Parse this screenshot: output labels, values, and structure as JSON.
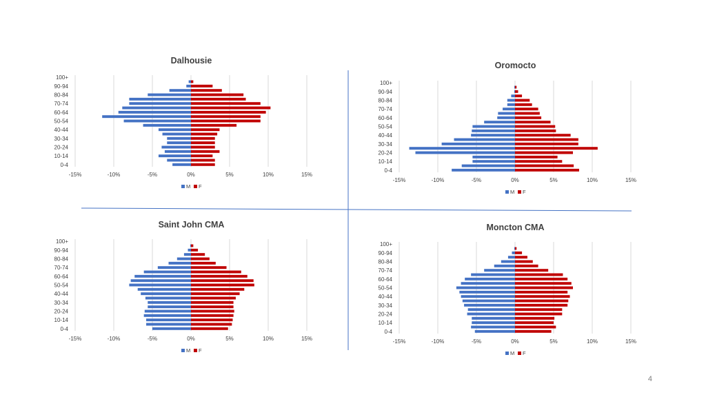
{
  "page": {
    "number": "4"
  },
  "colors": {
    "male": "#4472C4",
    "female": "#C00000",
    "grid": "#D9D9D9",
    "divider": "#4472C4",
    "text": "#404040"
  },
  "chart_data": [
    {
      "type": "bar",
      "orientation": "horizontal",
      "title": "Dalhousie",
      "categories": [
        "0-4",
        "5-9",
        "10-14",
        "15-19",
        "20-24",
        "25-29",
        "30-34",
        "35-39",
        "40-44",
        "45-49",
        "50-54",
        "55-59",
        "60-64",
        "65-69",
        "70-74",
        "75-79",
        "80-84",
        "85-89",
        "90-94",
        "95-99",
        "100+"
      ],
      "category_ticks": [
        "0-4",
        "10-14",
        "20-24",
        "30-34",
        "40-44",
        "50-54",
        "60-64",
        "70-74",
        "80-84",
        "90-94",
        "100+"
      ],
      "series": [
        {
          "name": "M",
          "values": [
            -2.4,
            -3.1,
            -4.2,
            -3.4,
            -3.8,
            -3.1,
            -3.1,
            -3.7,
            -4.2,
            -6.2,
            -8.7,
            -11.5,
            -9.4,
            -8.9,
            -8.0,
            -8.0,
            -5.6,
            -2.8,
            -0.6,
            -0.3,
            0
          ]
        },
        {
          "name": "F",
          "values": [
            3.1,
            3.1,
            2.8,
            3.7,
            3.1,
            3.1,
            3.1,
            3.4,
            3.7,
            5.9,
            9.0,
            9.0,
            9.7,
            10.3,
            9.0,
            7.1,
            6.8,
            4.0,
            2.8,
            0.3,
            0
          ]
        }
      ],
      "xlim": [
        -15,
        15
      ],
      "x_ticks": [
        "-15%",
        "-10%",
        "-5%",
        "0%",
        "5%",
        "10%",
        "15%"
      ],
      "legend": {
        "position": "bottom",
        "labels": [
          "M",
          "F"
        ]
      },
      "grid": true
    },
    {
      "type": "bar",
      "orientation": "horizontal",
      "title": "Oromocto",
      "categories": [
        "0-4",
        "5-9",
        "10-14",
        "15-19",
        "20-24",
        "25-29",
        "30-34",
        "35-39",
        "40-44",
        "45-49",
        "50-54",
        "55-59",
        "60-64",
        "65-69",
        "70-74",
        "75-79",
        "80-84",
        "85-89",
        "90-94",
        "95-99",
        "100+"
      ],
      "category_ticks": [
        "0-4",
        "10-14",
        "20-24",
        "30-34",
        "40-44",
        "50-54",
        "60-64",
        "70-74",
        "80-84",
        "90-94",
        "100+"
      ],
      "series": [
        {
          "name": "M",
          "values": [
            -8.2,
            -6.9,
            -5.5,
            -5.5,
            -12.9,
            -13.7,
            -9.5,
            -7.9,
            -5.7,
            -5.6,
            -5.5,
            -4.0,
            -2.3,
            -2.2,
            -1.6,
            -1.0,
            -1.0,
            -0.5,
            -0.1,
            -0.1,
            0
          ]
        },
        {
          "name": "F",
          "values": [
            8.3,
            7.6,
            6.1,
            5.5,
            7.5,
            10.7,
            8.2,
            8.2,
            7.2,
            5.3,
            5.2,
            4.6,
            3.4,
            3.2,
            3.0,
            2.2,
            1.9,
            0.9,
            0.4,
            0.2,
            0
          ]
        }
      ],
      "xlim": [
        -15,
        15
      ],
      "x_ticks": [
        "-15%",
        "-10%",
        "-5%",
        "0%",
        "5%",
        "10%",
        "15%"
      ],
      "legend": {
        "position": "bottom",
        "labels": [
          "M",
          "F"
        ]
      },
      "grid": true
    },
    {
      "type": "bar",
      "orientation": "horizontal",
      "title": "Saint John CMA",
      "categories": [
        "0-4",
        "5-9",
        "10-14",
        "15-19",
        "20-24",
        "25-29",
        "30-34",
        "35-39",
        "40-44",
        "45-49",
        "50-54",
        "55-59",
        "60-64",
        "65-69",
        "70-74",
        "75-79",
        "80-84",
        "85-89",
        "90-94",
        "95-99",
        "100+"
      ],
      "category_ticks": [
        "0-4",
        "10-14",
        "20-24",
        "30-34",
        "40-44",
        "50-54",
        "60-64",
        "70-74",
        "80-84",
        "90-94",
        "100+"
      ],
      "series": [
        {
          "name": "M",
          "values": [
            -5.0,
            -5.8,
            -5.8,
            -6.1,
            -6.0,
            -5.6,
            -5.6,
            -5.9,
            -6.5,
            -6.9,
            -8.0,
            -7.8,
            -7.3,
            -6.1,
            -4.3,
            -2.9,
            -1.8,
            -0.9,
            -0.4,
            -0.1,
            0
          ]
        },
        {
          "name": "F",
          "values": [
            4.8,
            5.3,
            5.4,
            5.5,
            5.6,
            5.5,
            5.5,
            5.8,
            6.3,
            6.9,
            8.2,
            8.1,
            7.3,
            6.5,
            4.6,
            3.2,
            2.4,
            1.8,
            0.9,
            0.3,
            0
          ]
        }
      ],
      "xlim": [
        -15,
        15
      ],
      "x_ticks": [
        "-15%",
        "-10%",
        "-5%",
        "0%",
        "5%",
        "10%",
        "15%"
      ],
      "legend": {
        "position": "bottom",
        "labels": [
          "M",
          "F"
        ]
      },
      "grid": true
    },
    {
      "type": "bar",
      "orientation": "horizontal",
      "title": "Moncton CMA",
      "categories": [
        "0-4",
        "5-9",
        "10-14",
        "15-19",
        "20-24",
        "25-29",
        "30-34",
        "35-39",
        "40-44",
        "45-49",
        "50-54",
        "55-59",
        "60-64",
        "65-69",
        "70-74",
        "75-79",
        "80-84",
        "85-89",
        "90-94",
        "95-99",
        "100+"
      ],
      "category_ticks": [
        "0-4",
        "10-14",
        "20-24",
        "30-34",
        "40-44",
        "50-54",
        "60-64",
        "70-74",
        "80-84",
        "90-94",
        "100+"
      ],
      "series": [
        {
          "name": "M",
          "values": [
            -5.2,
            -5.7,
            -5.6,
            -5.6,
            -6.2,
            -6.1,
            -6.6,
            -6.8,
            -7.0,
            -7.2,
            -7.6,
            -7.0,
            -6.5,
            -5.7,
            -4.0,
            -2.7,
            -1.8,
            -0.9,
            -0.4,
            -0.1,
            0
          ]
        },
        {
          "name": "F",
          "values": [
            4.7,
            5.3,
            5.0,
            5.1,
            6.1,
            6.1,
            6.8,
            6.9,
            7.1,
            6.8,
            7.5,
            7.3,
            6.8,
            6.2,
            4.3,
            3.0,
            2.3,
            1.6,
            0.9,
            0.2,
            0
          ]
        }
      ],
      "xlim": [
        -15,
        15
      ],
      "x_ticks": [
        "-15%",
        "-10%",
        "-5%",
        "0%",
        "5%",
        "10%",
        "15%"
      ],
      "legend": {
        "position": "bottom",
        "labels": [
          "M",
          "F"
        ]
      },
      "grid": true
    }
  ]
}
